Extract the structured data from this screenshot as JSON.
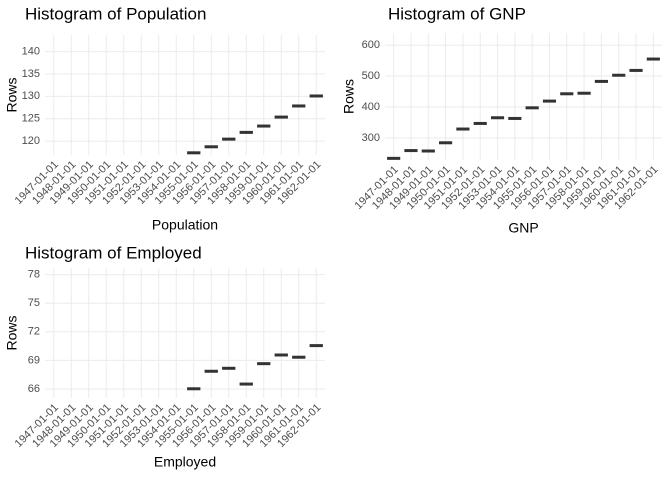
{
  "chart_data": [
    {
      "type": "dash",
      "title": "Histogram of Population",
      "x_label": "Population",
      "y_label": "Rows",
      "categories": [
        "1947-01-01",
        "1948-01-01",
        "1949-01-01",
        "1950-01-01",
        "1951-01-01",
        "1952-01-01",
        "1953-01-01",
        "1954-01-01",
        "1955-01-01",
        "1956-01-01",
        "1957-01-01",
        "1958-01-01",
        "1959-01-01",
        "1960-01-01",
        "1961-01-01",
        "1962-01-01"
      ],
      "values": [
        null,
        null,
        null,
        null,
        null,
        null,
        null,
        null,
        117.388,
        118.734,
        120.445,
        121.95,
        123.366,
        125.368,
        127.852,
        130.081
      ],
      "color": "#333333",
      "ylim": [
        116.9,
        143.7
      ],
      "yticks": [
        120,
        125,
        130,
        135,
        140
      ],
      "grid": true
    },
    {
      "type": "dash",
      "title": "Histogram of GNP",
      "x_label": "GNP",
      "y_label": "Rows",
      "categories": [
        "1947-01-01",
        "1948-01-01",
        "1949-01-01",
        "1950-01-01",
        "1951-01-01",
        "1952-01-01",
        "1953-01-01",
        "1954-01-01",
        "1955-01-01",
        "1956-01-01",
        "1957-01-01",
        "1958-01-01",
        "1959-01-01",
        "1960-01-01",
        "1961-01-01",
        "1962-01-01"
      ],
      "values": [
        234.289,
        259.426,
        258.054,
        284.599,
        328.975,
        346.999,
        365.385,
        363.112,
        397.469,
        419.18,
        442.769,
        444.546,
        482.704,
        502.601,
        518.173,
        554.894
      ],
      "color": "#333333",
      "ylim": [
        229,
        639
      ],
      "yticks": [
        300,
        400,
        500,
        600
      ],
      "grid": true
    },
    {
      "type": "dash",
      "title": "Histogram of Employed",
      "x_label": "Employed",
      "y_label": "Rows",
      "categories": [
        "1947-01-01",
        "1948-01-01",
        "1949-01-01",
        "1950-01-01",
        "1951-01-01",
        "1952-01-01",
        "1953-01-01",
        "1954-01-01",
        "1955-01-01",
        "1956-01-01",
        "1957-01-01",
        "1958-01-01",
        "1959-01-01",
        "1960-01-01",
        "1961-01-01",
        "1962-01-01"
      ],
      "values": [
        null,
        null,
        null,
        null,
        null,
        null,
        null,
        null,
        66.019,
        67.857,
        68.169,
        66.513,
        68.655,
        69.564,
        69.331,
        70.551
      ],
      "color": "#333333",
      "ylim": [
        65.05,
        78.7
      ],
      "yticks": [
        66,
        69,
        72,
        75,
        78
      ],
      "grid": true
    }
  ]
}
